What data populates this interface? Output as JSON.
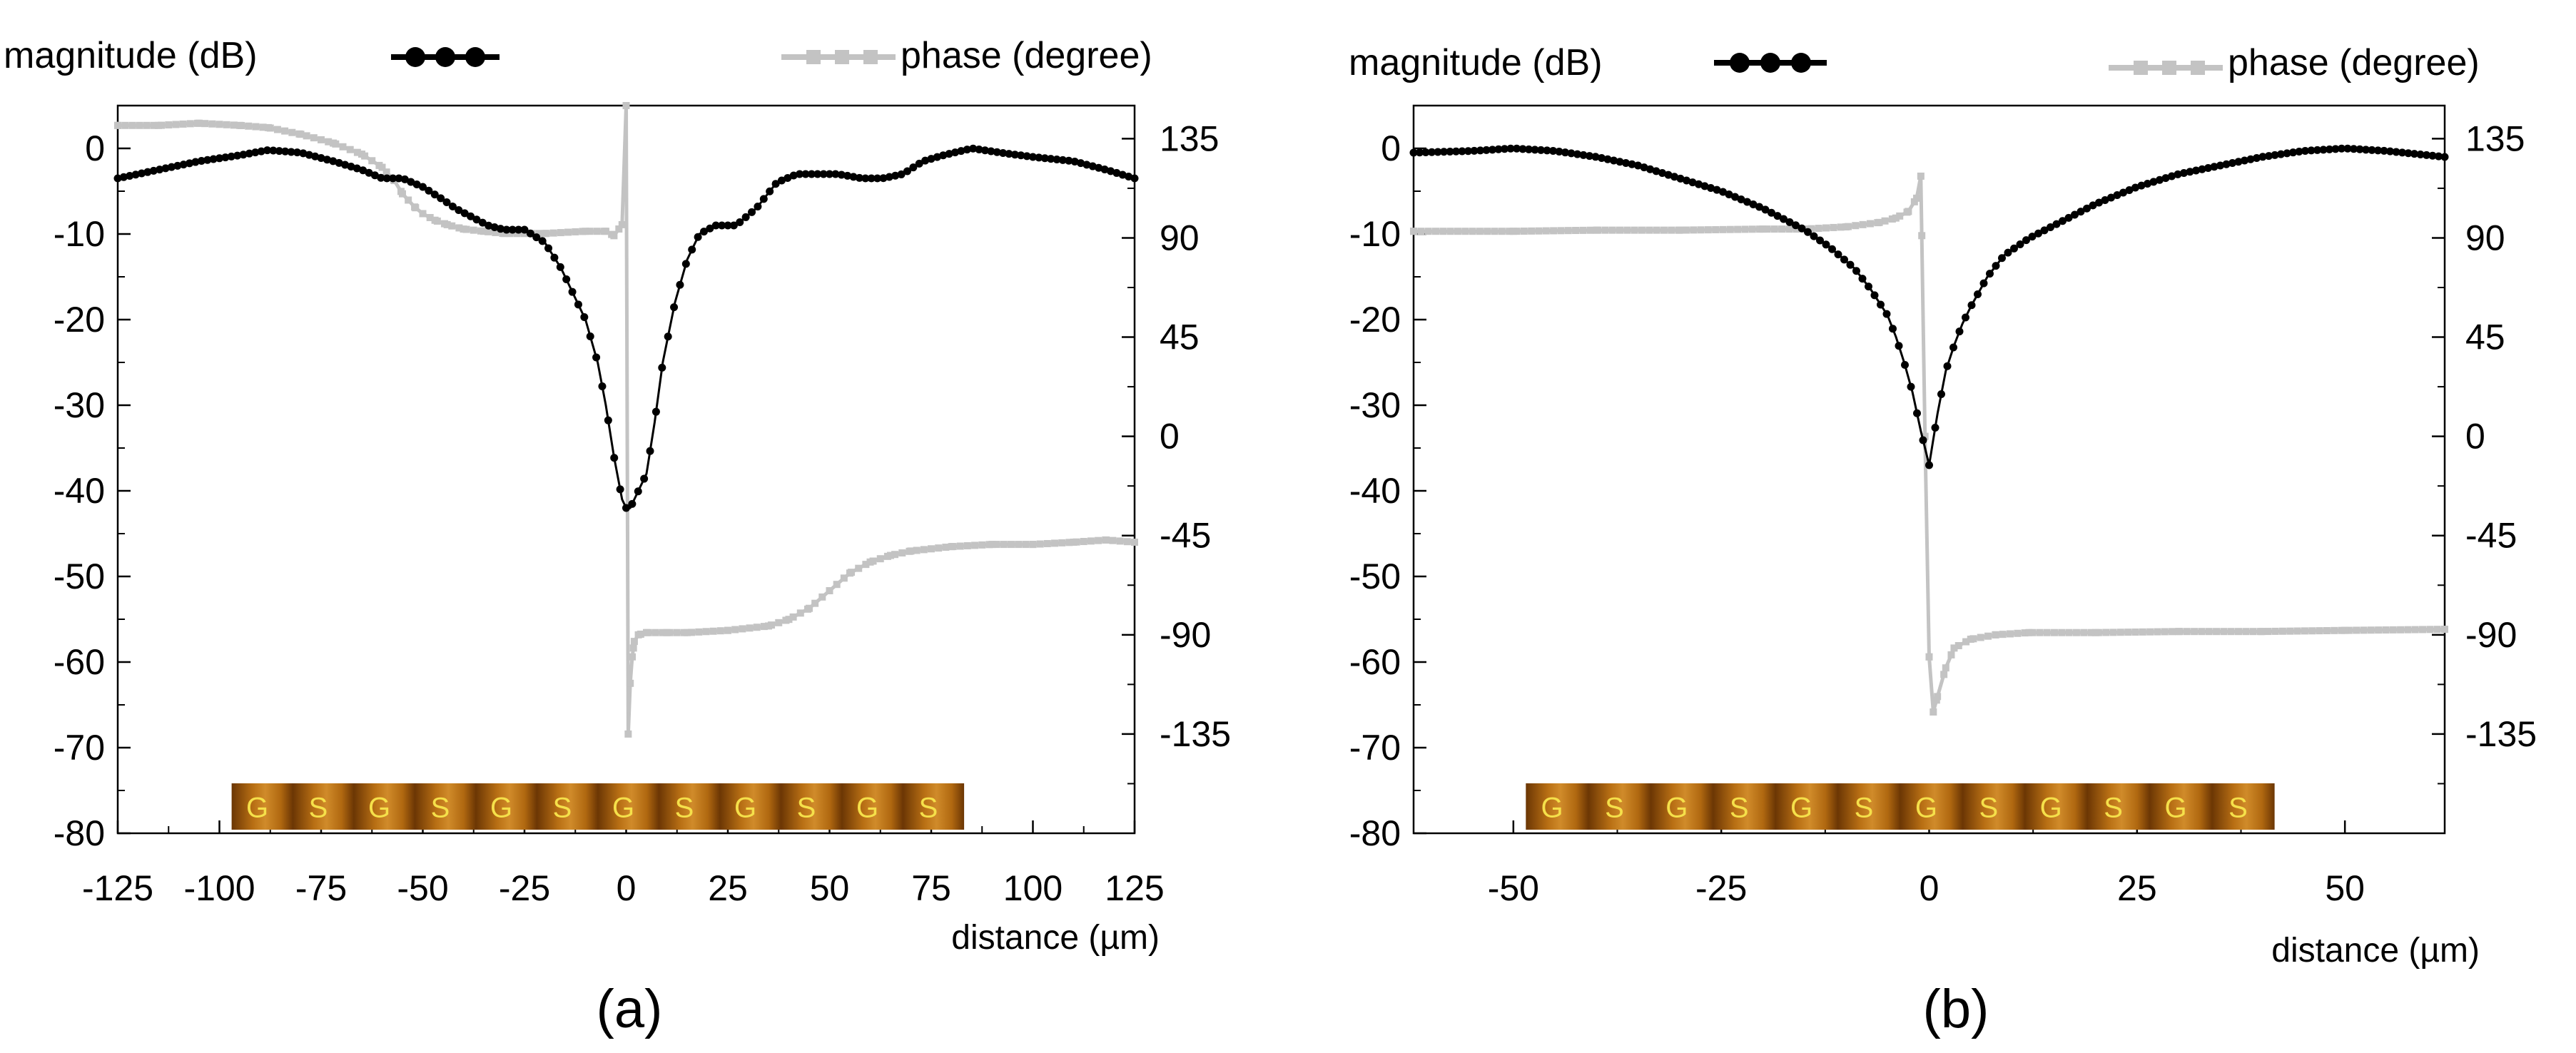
{
  "chart_data": [
    {
      "type": "line",
      "panel_label": "(a)",
      "xlabel": "distance (µm)",
      "ylabel_left": "",
      "ylabel_right": "",
      "xlim": [
        -125,
        125
      ],
      "ylim_left": [
        -80,
        5
      ],
      "ylim_right": [
        -180,
        150
      ],
      "x_ticks": [
        -125,
        -100,
        -75,
        -50,
        -25,
        0,
        25,
        50,
        75,
        100,
        125
      ],
      "x_tick_labels": [
        "-125",
        "-100",
        "-75",
        "-50",
        "-25",
        "0",
        "25",
        "50",
        "75",
        "100",
        "125"
      ],
      "y_left_ticks": [
        0,
        -10,
        -20,
        -30,
        -40,
        -50,
        -60,
        -70,
        -80
      ],
      "y_left_tick_labels": [
        "0",
        "-10",
        "-20",
        "-30",
        "-40",
        "-50",
        "-60",
        "-70",
        "-80"
      ],
      "y_right_ticks": [
        135,
        90,
        45,
        0,
        -45,
        -90,
        -135
      ],
      "y_right_tick_labels": [
        "135",
        "90",
        "45",
        "0",
        "-45",
        "-90",
        "-135"
      ],
      "legend": [
        {
          "label": "magnitude (dB)",
          "color": "#000000",
          "axis": "left"
        },
        {
          "label": "phase (degree)",
          "color": "#c3c3c3",
          "axis": "right"
        }
      ],
      "electrode_strip": {
        "x_range": [
          -97,
          83
        ],
        "labels": [
          "G",
          "S",
          "G",
          "S",
          "G",
          "S",
          "G",
          "S",
          "G",
          "S",
          "G",
          "S"
        ]
      },
      "series": [
        {
          "name": "magnitude (dB)",
          "axis": "left",
          "color": "#000000",
          "x": [
            -125,
            -115,
            -105,
            -95,
            -88,
            -80,
            -72,
            -65,
            -60,
            -55,
            -50,
            -45,
            -42,
            -38,
            -34,
            -30,
            -25,
            -20,
            -16,
            -13,
            -10,
            -7,
            -5,
            -3,
            -1,
            0,
            1,
            3,
            5,
            7,
            9,
            12,
            15,
            18,
            22,
            27,
            32,
            37,
            42,
            47,
            52,
            58,
            63,
            68,
            73,
            78,
            85,
            92,
            100,
            110,
            118,
            125
          ],
          "values": [
            -3.5,
            -2.5,
            -1.5,
            -0.8,
            -0.2,
            -0.5,
            -1.5,
            -2.5,
            -3.5,
            -3.5,
            -4.5,
            -6,
            -7,
            -8,
            -9,
            -9.5,
            -9.5,
            -11,
            -14,
            -17,
            -20,
            -25,
            -30,
            -36,
            -41,
            -42,
            -42,
            -40,
            -38,
            -32,
            -25,
            -18,
            -13,
            -10,
            -9,
            -9,
            -7,
            -4,
            -3,
            -3,
            -3,
            -3.5,
            -3.5,
            -3,
            -1.5,
            -0.8,
            0,
            -0.5,
            -1,
            -1.5,
            -2.5,
            -3.5
          ]
        },
        {
          "name": "phase (degree)",
          "axis": "right",
          "color": "#c3c3c3",
          "x": [
            -125,
            -115,
            -105,
            -95,
            -88,
            -80,
            -72,
            -65,
            -60,
            -57,
            -55,
            -52,
            -50,
            -47,
            -44,
            -40,
            -35,
            -30,
            -20,
            -10,
            -5,
            -3,
            -1,
            0,
            0.5,
            1,
            1.5,
            2,
            3,
            5,
            10,
            15,
            25,
            35,
            40,
            45,
            50,
            55,
            60,
            65,
            70,
            80,
            90,
            100,
            110,
            118,
            125
          ],
          "values": [
            141,
            141,
            142,
            141,
            140,
            137,
            133,
            128,
            122,
            116,
            110,
            104,
            101,
            98,
            96,
            94,
            93,
            92,
            92,
            93,
            93,
            91,
            96,
            150,
            -135,
            -112,
            -100,
            -93,
            -90,
            -89,
            -89,
            -89,
            -88,
            -86,
            -83,
            -78,
            -70,
            -62,
            -57,
            -54,
            -52,
            -50,
            -49,
            -49,
            -48,
            -47,
            -48
          ]
        }
      ]
    },
    {
      "type": "line",
      "panel_label": "(b)",
      "xlabel": "distance (µm)",
      "ylabel_left": "",
      "ylabel_right": "",
      "xlim": [
        -62,
        62
      ],
      "ylim_left": [
        -80,
        5
      ],
      "ylim_right": [
        -180,
        150
      ],
      "x_ticks": [
        -50,
        -25,
        0,
        25,
        50
      ],
      "x_tick_labels": [
        "-50",
        "-25",
        "0",
        "25",
        "50"
      ],
      "y_left_ticks": [
        0,
        -10,
        -20,
        -30,
        -40,
        -50,
        -60,
        -70,
        -80
      ],
      "y_left_tick_labels": [
        "0",
        "-10",
        "-20",
        "-30",
        "-40",
        "-50",
        "-60",
        "-70",
        "-80"
      ],
      "y_right_ticks": [
        135,
        90,
        45,
        0,
        -45,
        -90,
        -135
      ],
      "y_right_tick_labels": [
        "135",
        "90",
        "45",
        "0",
        "-45",
        "-90",
        "-135"
      ],
      "legend": [
        {
          "label": "magnitude (dB)",
          "color": "#000000",
          "axis": "left"
        },
        {
          "label": "phase (degree)",
          "color": "#c3c3c3",
          "axis": "right"
        }
      ],
      "electrode_strip": {
        "x_range": [
          -48.5,
          41.5
        ],
        "labels": [
          "G",
          "S",
          "G",
          "S",
          "G",
          "S",
          "G",
          "S",
          "G",
          "S",
          "G",
          "S"
        ]
      },
      "series": [
        {
          "name": "magnitude (dB)",
          "axis": "left",
          "color": "#000000",
          "x": [
            -62,
            -55,
            -50,
            -45,
            -40,
            -35,
            -30,
            -25,
            -20,
            -15,
            -12,
            -9,
            -7,
            -5,
            -4,
            -3,
            -2,
            -1,
            -0.5,
            0,
            0.5,
            1,
            2,
            3,
            4,
            5,
            7,
            9,
            12,
            15,
            20,
            25,
            30,
            35,
            40,
            45,
            50,
            55,
            62
          ],
          "values": [
            -0.5,
            -0.3,
            0,
            -0.3,
            -1,
            -2,
            -3.5,
            -5,
            -7,
            -9.5,
            -11.5,
            -14,
            -16.5,
            -19.5,
            -22,
            -25,
            -28.5,
            -33,
            -35,
            -37,
            -34,
            -31,
            -26,
            -23,
            -20.5,
            -18.5,
            -15,
            -12.5,
            -10.5,
            -9,
            -6.5,
            -4.5,
            -3,
            -2,
            -1,
            -0.3,
            0,
            -0.3,
            -1
          ]
        },
        {
          "name": "phase (degree)",
          "axis": "right",
          "color": "#c3c3c3",
          "x": [
            -62,
            -50,
            -40,
            -30,
            -20,
            -15,
            -10,
            -6,
            -4,
            -2.5,
            -1.5,
            -1,
            -0.5,
            0,
            0.5,
            1,
            2,
            3,
            5,
            8,
            12,
            20,
            30,
            40,
            50,
            62
          ],
          "values": [
            93,
            93,
            93.5,
            93.5,
            94,
            94,
            95,
            97,
            99,
            102,
            108,
            118,
            0,
            -100,
            -125,
            -118,
            -105,
            -96,
            -92,
            -90,
            -89,
            -89,
            -88.5,
            -88.5,
            -88,
            -87.5
          ]
        }
      ]
    }
  ]
}
